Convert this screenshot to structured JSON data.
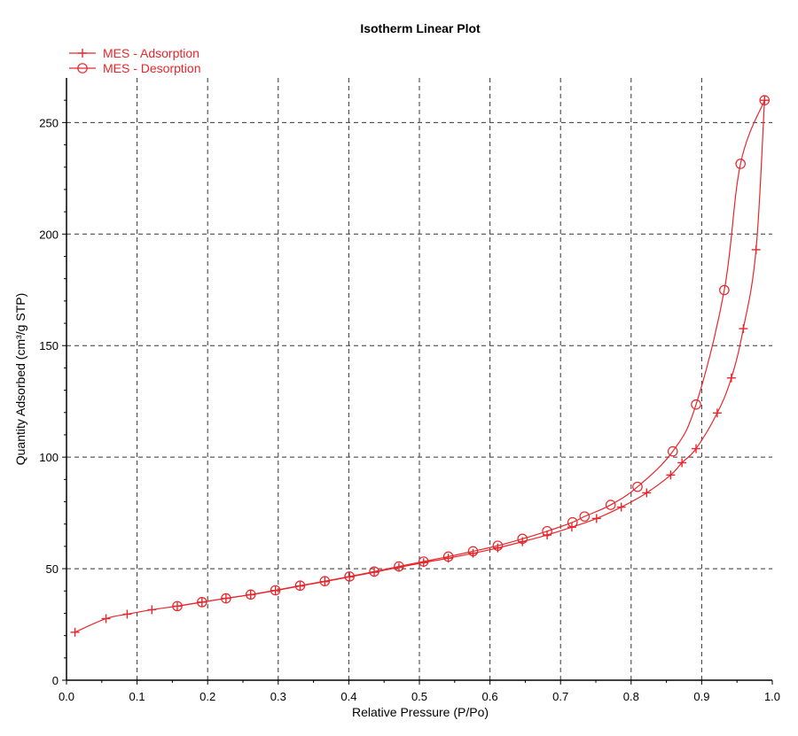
{
  "chart_data": {
    "type": "scatter",
    "title": "Isotherm Linear Plot",
    "xlabel": "Relative Pressure (P/Po)",
    "ylabel": "Quantity Adsorbed (cm³/g STP)",
    "xlim": [
      0.0,
      1.0
    ],
    "ylim": [
      0,
      270
    ],
    "x_ticks": [
      "0.0",
      "0.1",
      "0.2",
      "0.3",
      "0.4",
      "0.5",
      "0.6",
      "0.7",
      "0.8",
      "0.9",
      "1.0"
    ],
    "y_ticks": [
      "0",
      "50",
      "100",
      "150",
      "200",
      "250"
    ],
    "grid": true,
    "legend_position": "top-left",
    "series": [
      {
        "name": "MES - Adsorption",
        "marker": "plus",
        "color": "#e8262b",
        "points": [
          [
            0.012,
            21.5
          ],
          [
            0.056,
            27.6
          ],
          [
            0.086,
            29.6
          ],
          [
            0.121,
            31.6
          ],
          [
            0.157,
            33.2
          ],
          [
            0.192,
            35.0
          ],
          [
            0.226,
            36.7
          ],
          [
            0.261,
            38.3
          ],
          [
            0.296,
            40.2
          ],
          [
            0.331,
            42.2
          ],
          [
            0.366,
            44.2
          ],
          [
            0.401,
            46.3
          ],
          [
            0.436,
            48.4
          ],
          [
            0.471,
            50.6
          ],
          [
            0.506,
            52.7
          ],
          [
            0.541,
            54.7
          ],
          [
            0.576,
            56.9
          ],
          [
            0.611,
            59.3
          ],
          [
            0.646,
            62.1
          ],
          [
            0.681,
            65.1
          ],
          [
            0.716,
            68.6
          ],
          [
            0.751,
            72.5
          ],
          [
            0.786,
            77.6
          ],
          [
            0.822,
            84.0
          ],
          [
            0.856,
            92.0
          ],
          [
            0.872,
            97.5
          ],
          [
            0.892,
            103.8
          ],
          [
            0.922,
            119.8
          ],
          [
            0.942,
            135.5
          ],
          [
            0.959,
            157.6
          ],
          [
            0.977,
            193.0
          ],
          [
            0.989,
            260.0
          ]
        ]
      },
      {
        "name": "MES - Desorption",
        "marker": "circle",
        "color": "#e8262b",
        "points": [
          [
            0.989,
            260.0
          ],
          [
            0.955,
            231.5
          ],
          [
            0.932,
            174.9
          ],
          [
            0.892,
            123.6
          ],
          [
            0.859,
            102.6
          ],
          [
            0.809,
            86.7
          ],
          [
            0.771,
            78.6
          ],
          [
            0.734,
            73.4
          ],
          [
            0.717,
            70.8
          ],
          [
            0.681,
            66.8
          ],
          [
            0.646,
            63.4
          ],
          [
            0.611,
            60.3
          ],
          [
            0.576,
            57.8
          ],
          [
            0.541,
            55.4
          ],
          [
            0.506,
            53.2
          ],
          [
            0.471,
            51.0
          ],
          [
            0.436,
            48.7
          ],
          [
            0.401,
            46.5
          ],
          [
            0.366,
            44.4
          ],
          [
            0.331,
            42.4
          ],
          [
            0.296,
            40.3
          ],
          [
            0.261,
            38.4
          ],
          [
            0.226,
            36.7
          ],
          [
            0.192,
            35.0
          ],
          [
            0.157,
            33.2
          ]
        ]
      }
    ]
  }
}
